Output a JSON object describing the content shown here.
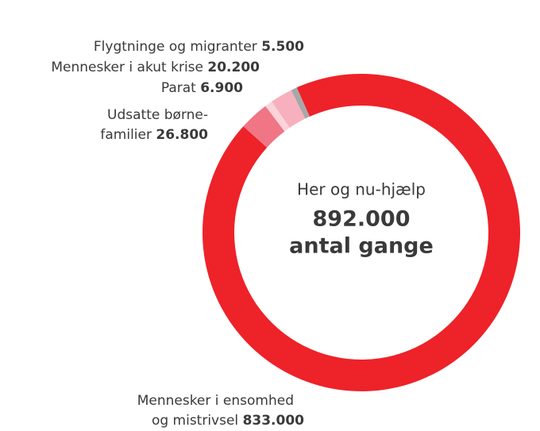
{
  "chart_data": {
    "type": "donut",
    "title": "Her og nu-hjælp",
    "annotations": [
      "892.000",
      "antal gange"
    ],
    "categories": [
      [
        "Mennesker i ensomhed",
        "og mistrivsel"
      ],
      [
        "Udsatte børne-",
        "familier"
      ],
      [
        "Parat"
      ],
      [
        "Mennesker i akut krise"
      ],
      [
        "Flygtninge og migranter"
      ]
    ],
    "values": [
      833000,
      26800,
      6900,
      20200,
      5500
    ],
    "value_labels": [
      "833.000",
      "26.800",
      "6.900",
      "20.200",
      "5.500"
    ],
    "colors": [
      "#ee2229",
      "#f07585",
      "#fbd3da",
      "#f7b0be",
      "#a8a8a8"
    ]
  }
}
